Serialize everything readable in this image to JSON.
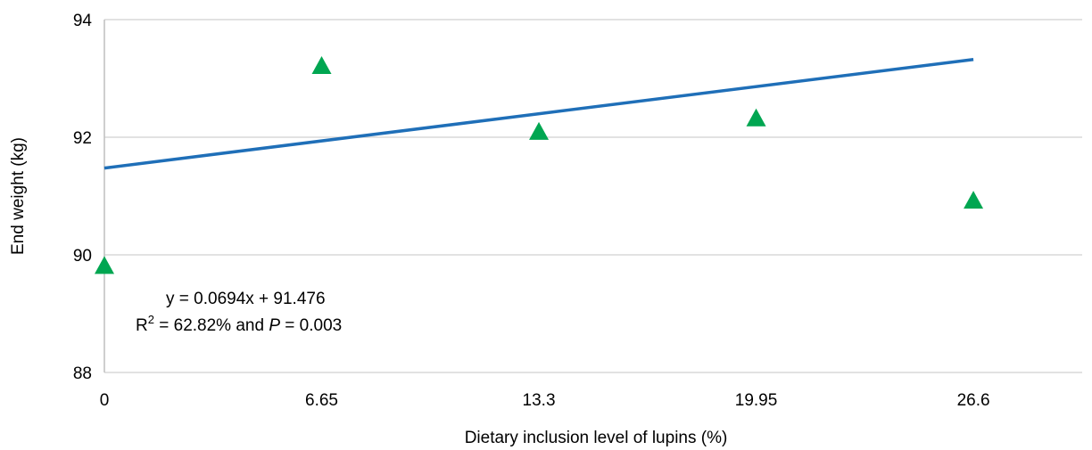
{
  "chart_data": {
    "type": "scatter",
    "title": "",
    "xlabel": "Dietary inclusion level of lupins (%)",
    "ylabel": "End weight (kg)",
    "x_tick_labels": [
      "0",
      "6.65",
      "13.3",
      "19.95",
      "26.6"
    ],
    "x_ticks": [
      0,
      6.65,
      13.3,
      19.95,
      26.6
    ],
    "y_tick_labels": [
      "88",
      "90",
      "92",
      "94"
    ],
    "y_ticks": [
      88,
      90,
      92,
      94
    ],
    "xlim": [
      0,
      29.93
    ],
    "ylim": [
      88,
      94
    ],
    "grid": "horizontal",
    "series": [
      {
        "marker": "triangle",
        "color": "#00a651",
        "points": [
          {
            "x": 0,
            "y": 89.82
          },
          {
            "x": 6.65,
            "y": 93.22
          },
          {
            "x": 13.3,
            "y": 92.1
          },
          {
            "x": 19.95,
            "y": 92.33
          },
          {
            "x": 26.6,
            "y": 90.93
          }
        ]
      }
    ],
    "trendline": {
      "type": "linear",
      "slope": 0.0694,
      "intercept": 91.476,
      "x_range": [
        0,
        26.6
      ],
      "color": "#1f6fb8"
    },
    "annotations": {
      "equation": "y = 0.0694x + 91.476",
      "r2_prefix": "R",
      "r2_sup": "2",
      "r2_mid": " = 62.82% and ",
      "p_symbol": "P",
      "p_suffix": " = 0.003"
    }
  }
}
